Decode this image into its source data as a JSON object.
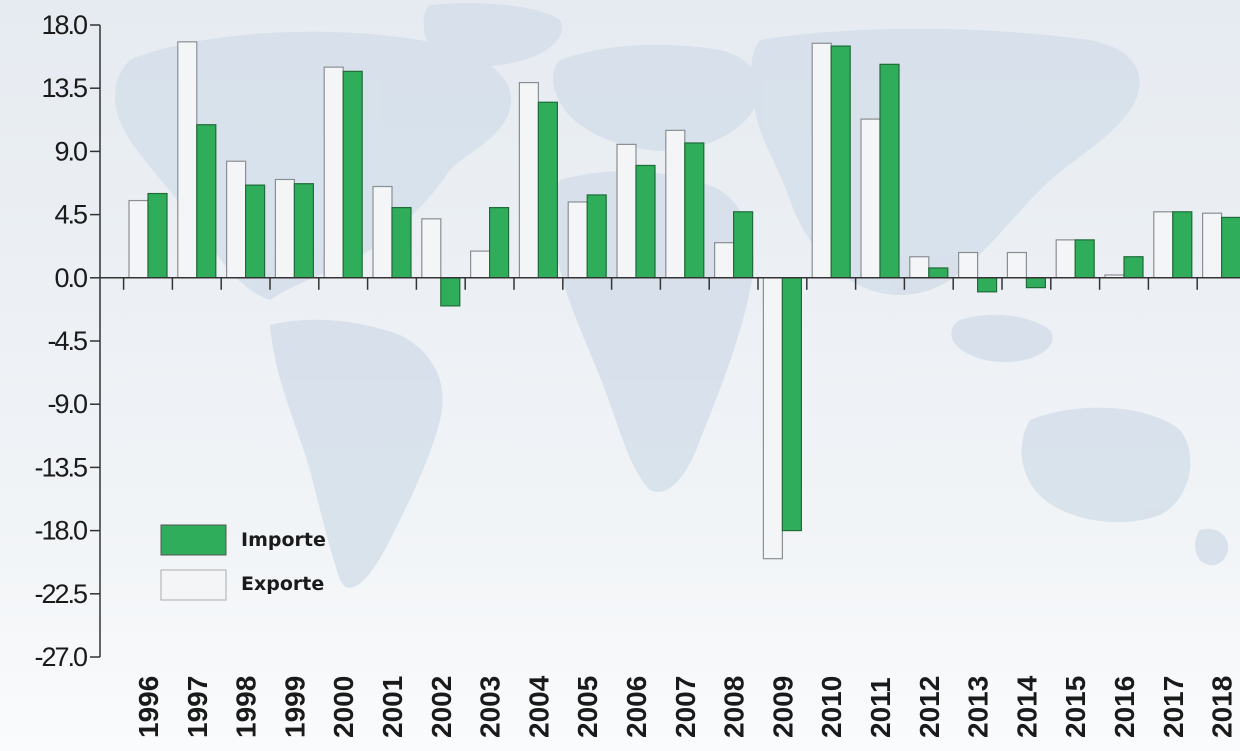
{
  "chart_data": {
    "type": "bar",
    "categories": [
      "1996",
      "1997",
      "1998",
      "1999",
      "2000",
      "2001",
      "2002",
      "2003",
      "2004",
      "2005",
      "2006",
      "2007",
      "2008",
      "2009",
      "2010",
      "2011",
      "2012",
      "2013",
      "2014",
      "2015",
      "2016",
      "2017",
      "2018"
    ],
    "series": [
      {
        "name": "Exporte",
        "color": "#f4f5f6",
        "values": [
          5.5,
          16.8,
          8.3,
          7.0,
          15.0,
          6.5,
          4.2,
          1.9,
          13.9,
          5.4,
          9.5,
          10.5,
          2.5,
          -20.0,
          16.7,
          11.3,
          1.5,
          1.8,
          1.8,
          2.7,
          0.2,
          4.7,
          4.6
        ]
      },
      {
        "name": "Importe",
        "color": "#2fad5a",
        "values": [
          6.0,
          10.9,
          6.6,
          6.7,
          14.7,
          5.0,
          -2.0,
          5.0,
          12.5,
          5.9,
          8.0,
          9.6,
          4.7,
          -18.0,
          16.5,
          15.2,
          0.7,
          -1.0,
          -0.7,
          2.7,
          1.5,
          4.7,
          4.3
        ]
      }
    ],
    "yticks": [
      "18.0",
      "13.5",
      "9.0",
      "4.5",
      "0.0",
      "-4.5",
      "-9.0",
      "-13.5",
      "-18.0",
      "-22.5",
      "-27.0"
    ],
    "ylim": [
      -27,
      18
    ],
    "title": "",
    "xlabel": "",
    "ylabel": "",
    "grid": false,
    "legend": {
      "position": "bottom-left",
      "items": [
        {
          "label": "Importe",
          "color": "#2fad5a"
        },
        {
          "label": "Exporte",
          "color": "#f4f5f6"
        }
      ]
    }
  }
}
